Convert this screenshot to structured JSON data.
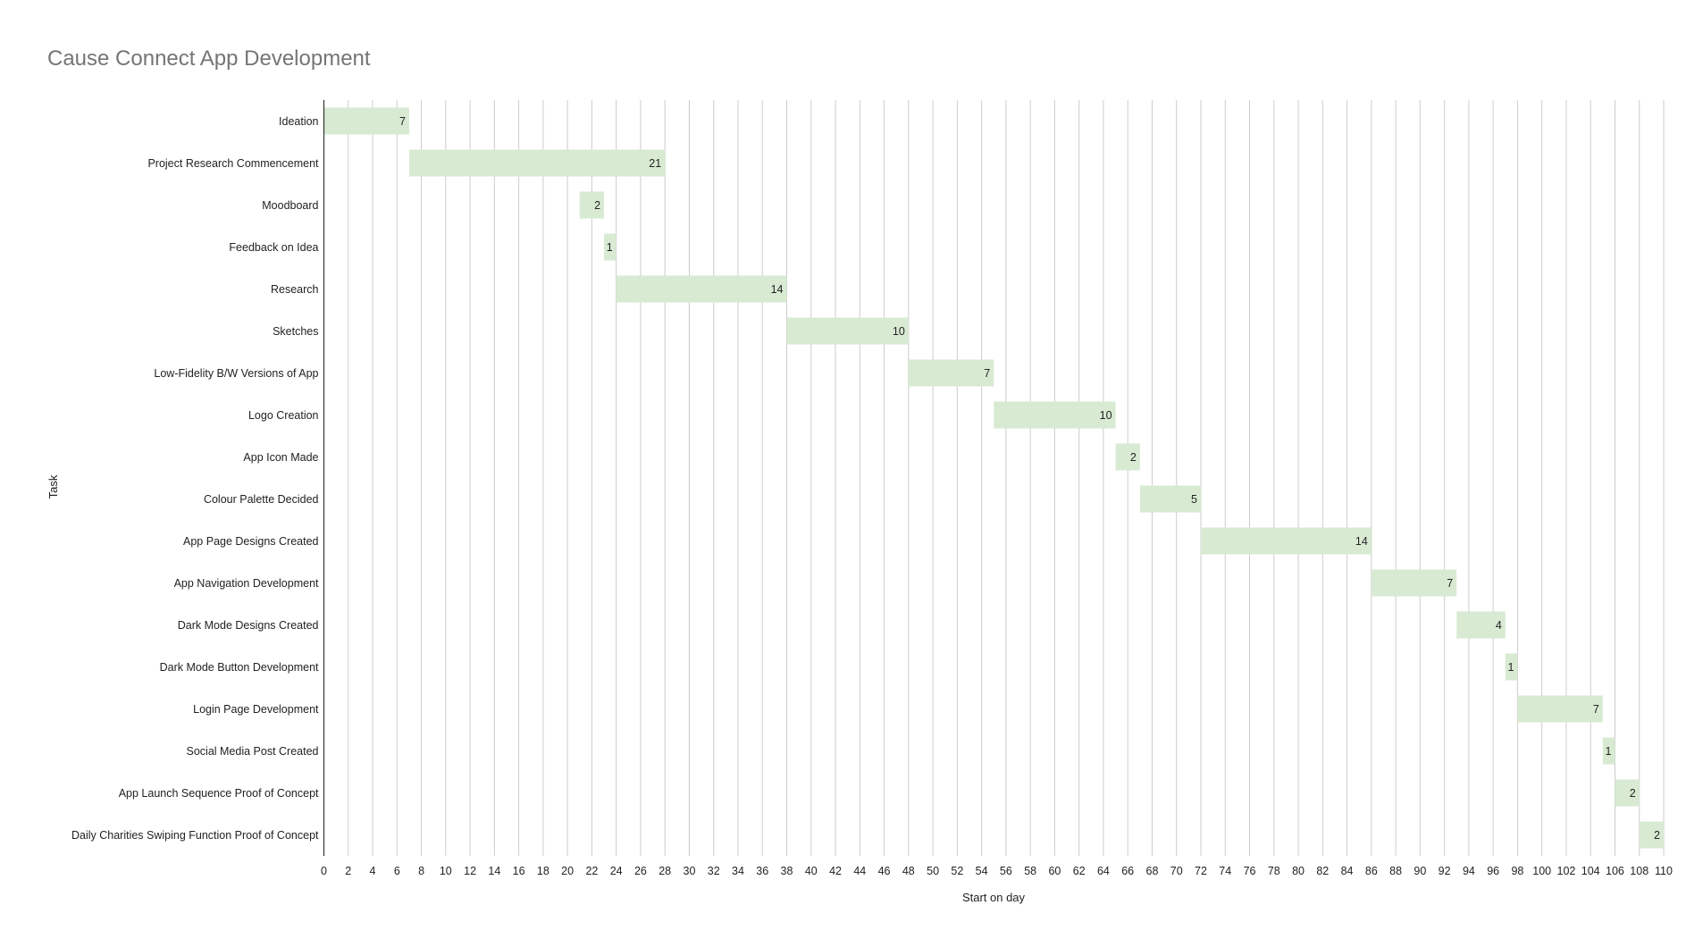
{
  "chart_data": {
    "type": "bar",
    "orientation": "horizontal",
    "stacked": true,
    "title": "Cause Connect App Development",
    "xlabel": "Start on day",
    "ylabel": "Task",
    "xlim": [
      0,
      110
    ],
    "xticks": [
      0,
      2,
      4,
      6,
      8,
      10,
      12,
      14,
      16,
      18,
      20,
      22,
      24,
      26,
      28,
      30,
      32,
      34,
      36,
      38,
      40,
      42,
      44,
      46,
      48,
      50,
      52,
      54,
      56,
      58,
      60,
      62,
      64,
      66,
      68,
      70,
      72,
      74,
      76,
      78,
      80,
      82,
      84,
      86,
      88,
      90,
      92,
      94,
      96,
      98,
      100,
      102,
      104,
      106,
      108,
      110
    ],
    "grid": true,
    "bar_color": "#d9ead3",
    "categories": [
      "Ideation",
      "Project Research Commencement",
      "Moodboard",
      "Feedback on Idea",
      "Research",
      "Sketches",
      "Low-Fidelity B/W Versions of App",
      "Logo Creation",
      "App Icon Made",
      "Colour Palette Decided",
      "App Page Designs Created",
      "App Navigation Development",
      "Dark Mode Designs Created",
      "Dark Mode Button Development",
      "Login Page Development",
      "Social Media Post Created",
      "App Launch Sequence Proof of Concept",
      "Daily Charities Swiping Function Proof of Concept"
    ],
    "start": [
      0,
      7,
      21,
      23,
      24,
      38,
      48,
      55,
      65,
      67,
      72,
      86,
      93,
      97,
      98,
      105,
      106,
      108
    ],
    "duration": [
      7,
      21,
      2,
      1,
      14,
      10,
      7,
      10,
      2,
      5,
      14,
      7,
      4,
      1,
      7,
      1,
      2,
      2
    ]
  }
}
